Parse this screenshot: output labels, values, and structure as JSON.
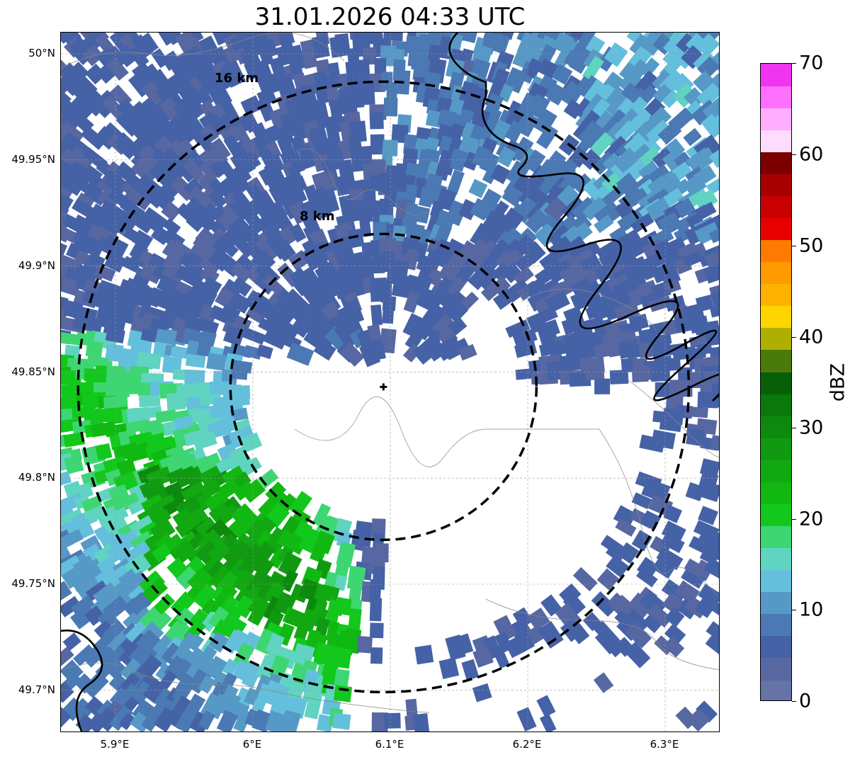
{
  "title": "31.01.2026 04:33 UTC",
  "map": {
    "lat_ticks": [
      "50°N",
      "49.95°N",
      "49.9°N",
      "49.85°N",
      "49.8°N",
      "49.75°N",
      "49.7°N"
    ],
    "lon_ticks": [
      "5.9°E",
      "6°E",
      "6.1°E",
      "6.2°E",
      "6.3°E"
    ],
    "ring_labels": [
      "16 km",
      "8 km"
    ],
    "radar_site": {
      "lon": 6.095,
      "lat": 49.843
    }
  },
  "colorbar": {
    "label": "dBZ",
    "ticks": [
      "0",
      "10",
      "20",
      "30",
      "40",
      "50",
      "60",
      "70"
    ],
    "colors": [
      "#6573a6",
      "#5667a2",
      "#4662a6",
      "#4b79b3",
      "#5799c6",
      "#64bfdc",
      "#60d4c0",
      "#3ed672",
      "#12c81c",
      "#11b812",
      "#11a811",
      "#119a11",
      "#0d8a0d",
      "#0a780a",
      "#075f07",
      "#497a0a",
      "#afaf00",
      "#ffd500",
      "#ffb100",
      "#ff9a00",
      "#ff7a00",
      "#e80000",
      "#c80000",
      "#a80000",
      "#7a0000",
      "#ffdcff",
      "#ffaeff",
      "#ff70ff",
      "#f035f0"
    ]
  }
}
